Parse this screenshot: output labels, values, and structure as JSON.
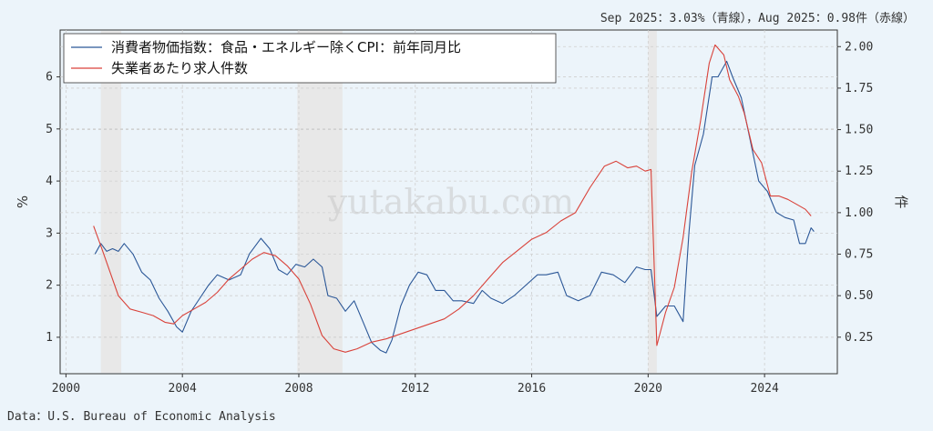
{
  "top_note": "Sep 2025：3.03%（青線），Aug 2025：0.98件（赤線）",
  "source": "Data：U.S. Bureau of Economic Analysis",
  "watermark": "yutakabu.com",
  "colors": {
    "cpi": "#2b5797",
    "jobs": "#d9423a",
    "recession": "#e8e8e8",
    "grid": "#cfcfcf"
  },
  "chart_data": {
    "type": "line",
    "title": "",
    "xlabel": "",
    "ylabel_left": "%",
    "ylabel_right": "件",
    "x_ticks": [
      2000,
      2004,
      2008,
      2012,
      2016,
      2020,
      2024
    ],
    "y_left_ticks": [
      1,
      2,
      3,
      4,
      5,
      6
    ],
    "y_right_ticks": [
      "0.25",
      "0.50",
      "0.75",
      "1.00",
      "1.25",
      "1.50",
      "1.75",
      "2.00"
    ],
    "xlim": [
      1999.8,
      2026.5
    ],
    "ylim_left": [
      0.3,
      6.9
    ],
    "ylim_right": [
      0.03,
      2.1
    ],
    "grid": true,
    "legend_position": "top-left",
    "recessions": [
      [
        2001.2,
        2001.9
      ],
      [
        2007.95,
        2009.5
      ],
      [
        2020.0,
        2020.3
      ]
    ],
    "series": [
      {
        "name": "消費者物価指数：食品・エネルギー除くCPI：前年同月比",
        "axis": "left",
        "color": "#2b5797",
        "points": [
          [
            2001.0,
            2.6
          ],
          [
            2001.2,
            2.8
          ],
          [
            2001.4,
            2.65
          ],
          [
            2001.6,
            2.7
          ],
          [
            2001.8,
            2.65
          ],
          [
            2002.0,
            2.8
          ],
          [
            2002.3,
            2.6
          ],
          [
            2002.6,
            2.25
          ],
          [
            2002.9,
            2.1
          ],
          [
            2003.2,
            1.75
          ],
          [
            2003.5,
            1.5
          ],
          [
            2003.8,
            1.2
          ],
          [
            2004.0,
            1.1
          ],
          [
            2004.3,
            1.5
          ],
          [
            2004.6,
            1.75
          ],
          [
            2004.9,
            2.0
          ],
          [
            2005.2,
            2.2
          ],
          [
            2005.6,
            2.1
          ],
          [
            2006.0,
            2.2
          ],
          [
            2006.3,
            2.6
          ],
          [
            2006.7,
            2.9
          ],
          [
            2007.0,
            2.7
          ],
          [
            2007.3,
            2.3
          ],
          [
            2007.6,
            2.2
          ],
          [
            2007.9,
            2.4
          ],
          [
            2008.2,
            2.35
          ],
          [
            2008.5,
            2.5
          ],
          [
            2008.8,
            2.35
          ],
          [
            2009.0,
            1.8
          ],
          [
            2009.3,
            1.75
          ],
          [
            2009.6,
            1.5
          ],
          [
            2009.9,
            1.7
          ],
          [
            2010.2,
            1.3
          ],
          [
            2010.5,
            0.9
          ],
          [
            2010.8,
            0.75
          ],
          [
            2011.0,
            0.7
          ],
          [
            2011.2,
            0.95
          ],
          [
            2011.5,
            1.6
          ],
          [
            2011.8,
            2.0
          ],
          [
            2012.1,
            2.25
          ],
          [
            2012.4,
            2.2
          ],
          [
            2012.7,
            1.9
          ],
          [
            2013.0,
            1.9
          ],
          [
            2013.3,
            1.7
          ],
          [
            2013.6,
            1.7
          ],
          [
            2014.0,
            1.65
          ],
          [
            2014.3,
            1.9
          ],
          [
            2014.6,
            1.75
          ],
          [
            2015.0,
            1.65
          ],
          [
            2015.4,
            1.8
          ],
          [
            2015.8,
            2.0
          ],
          [
            2016.2,
            2.2
          ],
          [
            2016.5,
            2.2
          ],
          [
            2016.9,
            2.25
          ],
          [
            2017.2,
            1.8
          ],
          [
            2017.6,
            1.7
          ],
          [
            2018.0,
            1.8
          ],
          [
            2018.4,
            2.25
          ],
          [
            2018.8,
            2.2
          ],
          [
            2019.2,
            2.05
          ],
          [
            2019.6,
            2.35
          ],
          [
            2019.9,
            2.3
          ],
          [
            2020.1,
            2.3
          ],
          [
            2020.3,
            1.4
          ],
          [
            2020.6,
            1.6
          ],
          [
            2020.9,
            1.6
          ],
          [
            2021.2,
            1.3
          ],
          [
            2021.4,
            3.0
          ],
          [
            2021.6,
            4.3
          ],
          [
            2021.9,
            4.9
          ],
          [
            2022.2,
            6.0
          ],
          [
            2022.4,
            6.0
          ],
          [
            2022.7,
            6.3
          ],
          [
            2022.9,
            6.0
          ],
          [
            2023.2,
            5.6
          ],
          [
            2023.5,
            4.8
          ],
          [
            2023.8,
            4.0
          ],
          [
            2024.1,
            3.8
          ],
          [
            2024.4,
            3.4
          ],
          [
            2024.7,
            3.3
          ],
          [
            2025.0,
            3.25
          ],
          [
            2025.2,
            2.8
          ],
          [
            2025.4,
            2.8
          ],
          [
            2025.6,
            3.1
          ],
          [
            2025.7,
            3.03
          ]
        ]
      },
      {
        "name": "失業者あたり求人件数",
        "axis": "right",
        "color": "#d9423a",
        "points": [
          [
            2000.95,
            0.92
          ],
          [
            2001.2,
            0.8
          ],
          [
            2001.5,
            0.65
          ],
          [
            2001.8,
            0.5
          ],
          [
            2002.2,
            0.42
          ],
          [
            2002.6,
            0.4
          ],
          [
            2003.0,
            0.38
          ],
          [
            2003.4,
            0.34
          ],
          [
            2003.7,
            0.33
          ],
          [
            2004.0,
            0.38
          ],
          [
            2004.4,
            0.42
          ],
          [
            2004.8,
            0.46
          ],
          [
            2005.2,
            0.52
          ],
          [
            2005.6,
            0.6
          ],
          [
            2006.0,
            0.66
          ],
          [
            2006.4,
            0.72
          ],
          [
            2006.8,
            0.76
          ],
          [
            2007.2,
            0.74
          ],
          [
            2007.6,
            0.68
          ],
          [
            2008.0,
            0.6
          ],
          [
            2008.4,
            0.45
          ],
          [
            2008.8,
            0.26
          ],
          [
            2009.2,
            0.18
          ],
          [
            2009.6,
            0.16
          ],
          [
            2010.0,
            0.18
          ],
          [
            2010.5,
            0.22
          ],
          [
            2011.0,
            0.24
          ],
          [
            2011.5,
            0.27
          ],
          [
            2012.0,
            0.3
          ],
          [
            2012.5,
            0.33
          ],
          [
            2013.0,
            0.36
          ],
          [
            2013.5,
            0.42
          ],
          [
            2014.0,
            0.5
          ],
          [
            2014.5,
            0.6
          ],
          [
            2015.0,
            0.7
          ],
          [
            2015.5,
            0.77
          ],
          [
            2016.0,
            0.84
          ],
          [
            2016.5,
            0.88
          ],
          [
            2017.0,
            0.95
          ],
          [
            2017.5,
            1.0
          ],
          [
            2018.0,
            1.15
          ],
          [
            2018.5,
            1.28
          ],
          [
            2018.9,
            1.31
          ],
          [
            2019.3,
            1.27
          ],
          [
            2019.6,
            1.28
          ],
          [
            2019.9,
            1.25
          ],
          [
            2020.1,
            1.26
          ],
          [
            2020.3,
            0.2
          ],
          [
            2020.6,
            0.4
          ],
          [
            2020.9,
            0.55
          ],
          [
            2021.2,
            0.85
          ],
          [
            2021.5,
            1.25
          ],
          [
            2021.8,
            1.55
          ],
          [
            2022.1,
            1.9
          ],
          [
            2022.3,
            2.01
          ],
          [
            2022.6,
            1.95
          ],
          [
            2022.8,
            1.8
          ],
          [
            2023.1,
            1.7
          ],
          [
            2023.3,
            1.6
          ],
          [
            2023.6,
            1.38
          ],
          [
            2023.9,
            1.3
          ],
          [
            2024.2,
            1.1
          ],
          [
            2024.5,
            1.1
          ],
          [
            2024.8,
            1.08
          ],
          [
            2025.1,
            1.05
          ],
          [
            2025.4,
            1.02
          ],
          [
            2025.6,
            0.98
          ]
        ]
      }
    ]
  }
}
